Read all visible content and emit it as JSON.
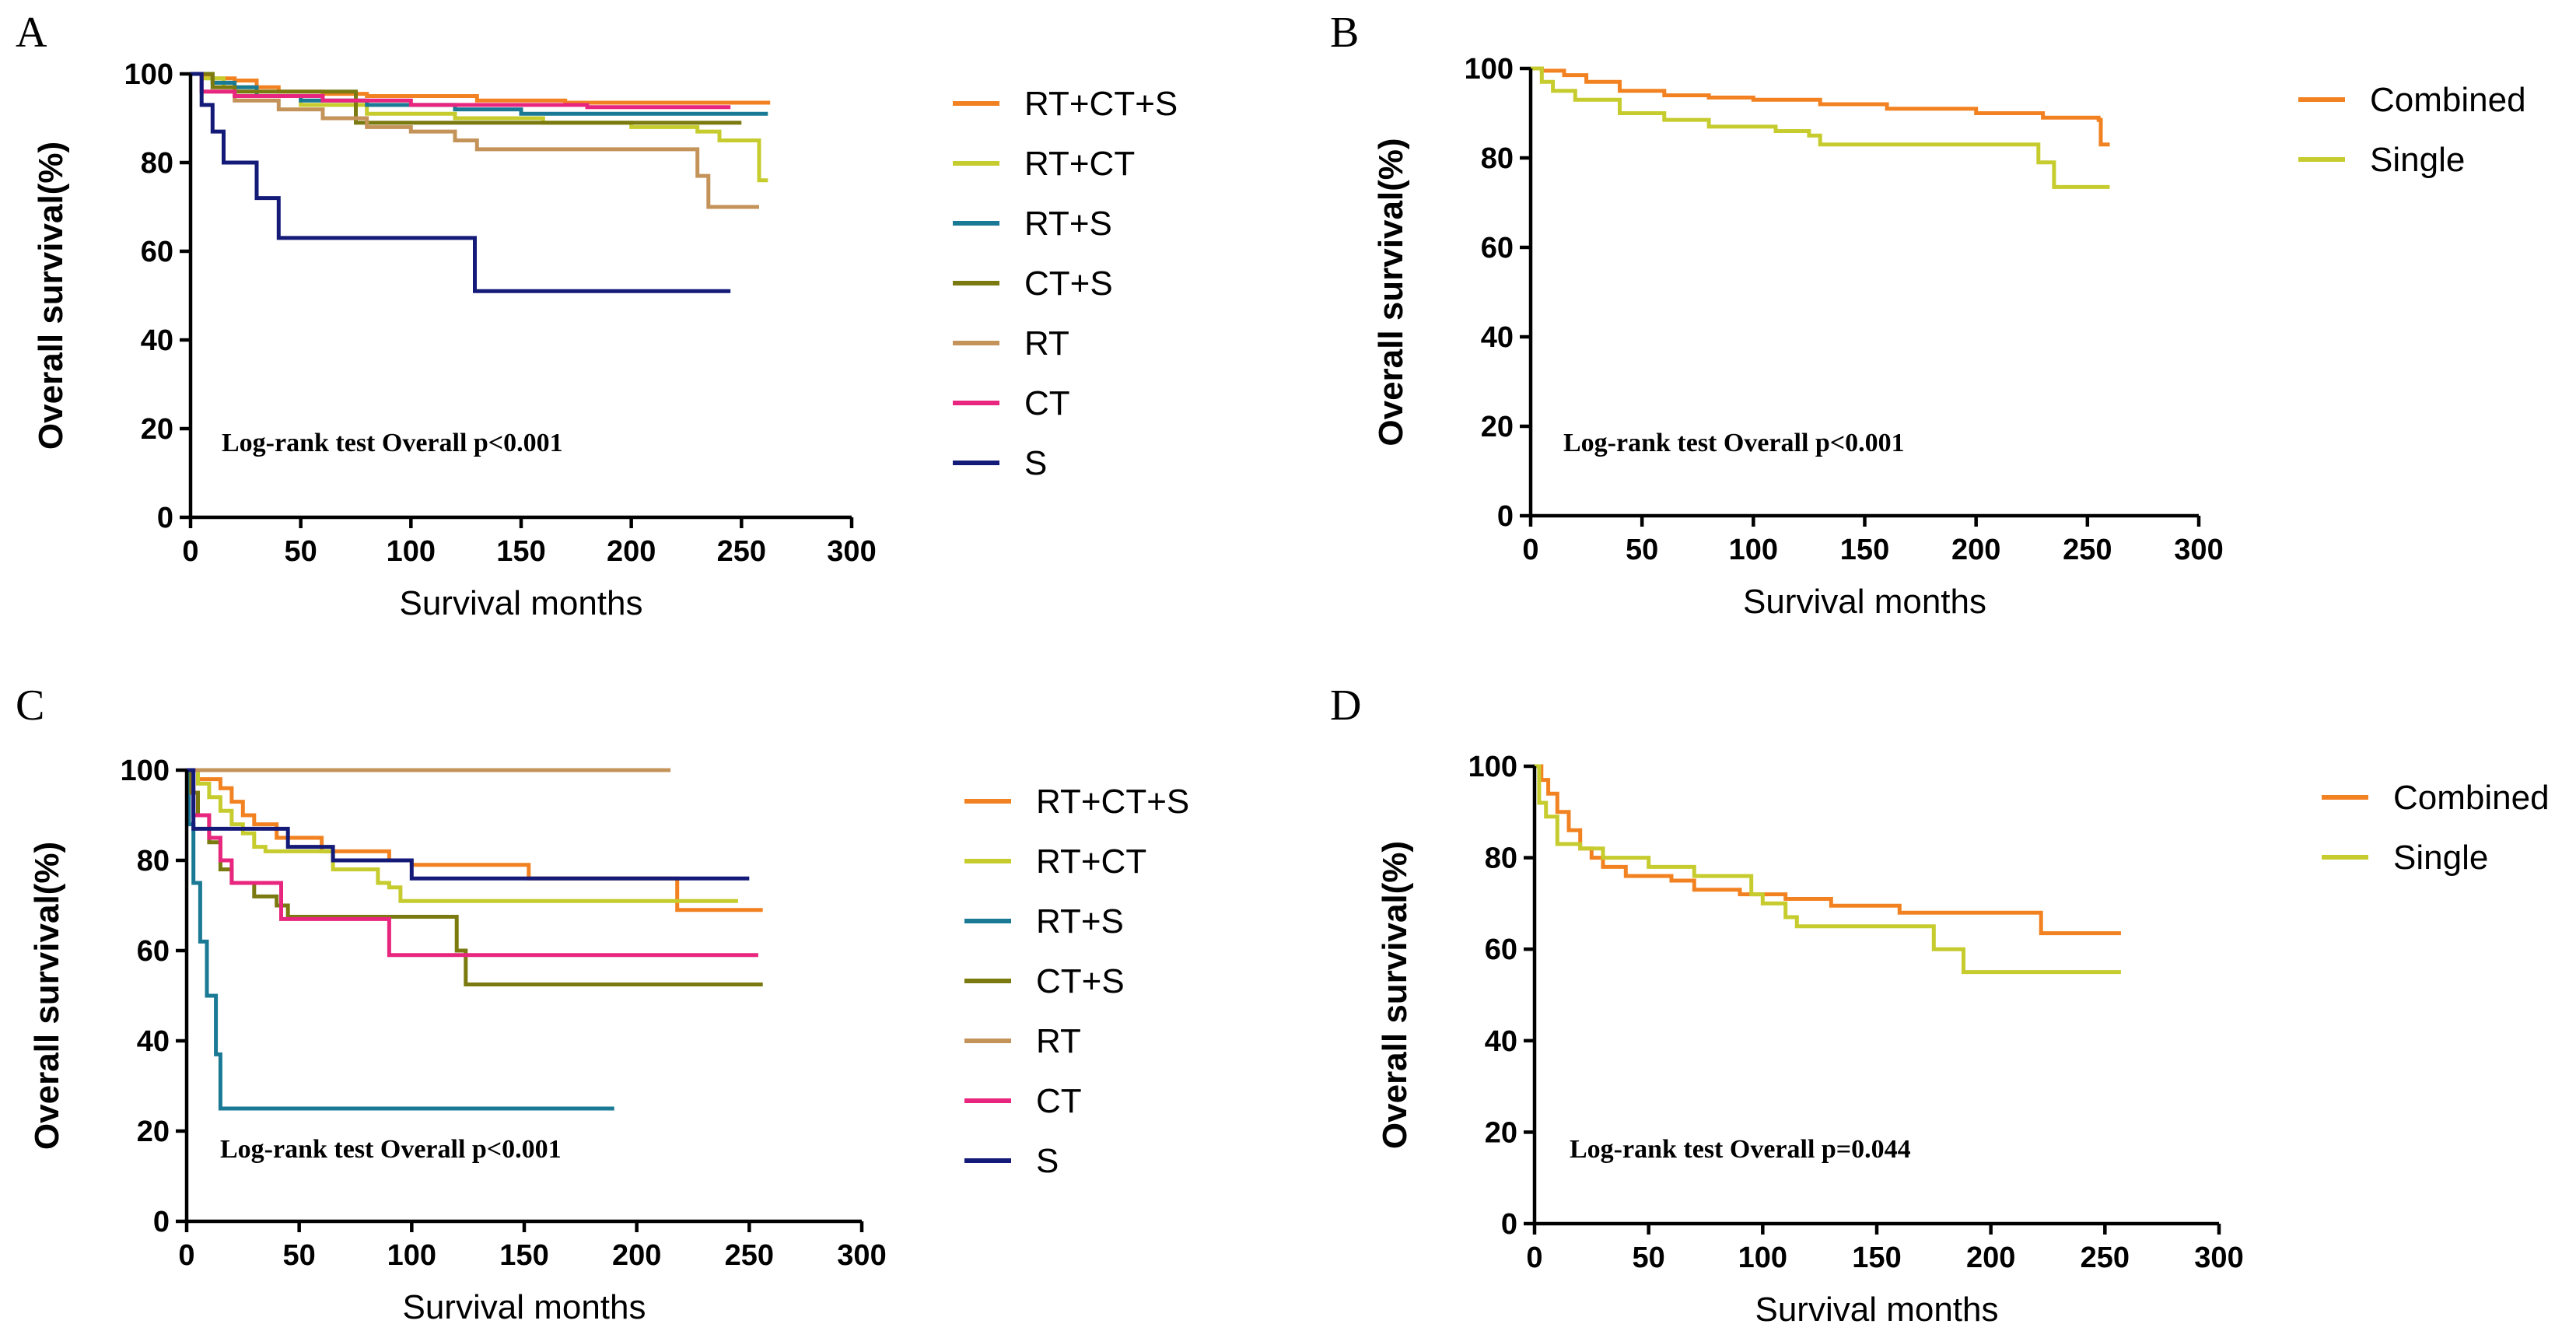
{
  "chart_data": [
    {
      "id": "A",
      "panel_label": "A",
      "type": "line",
      "xlabel": "Survival months",
      "ylabel": "Overall survival(%)",
      "xlim": [
        0,
        300
      ],
      "ylim": [
        0,
        100
      ],
      "xticks": [
        "0",
        "50",
        "100",
        "150",
        "200",
        "250",
        "300"
      ],
      "yticks": [
        "0",
        "20",
        "40",
        "60",
        "80",
        "100"
      ],
      "annotation": "Log-rank test Overall p<0.001",
      "legend_position": "right",
      "series": [
        {
          "name": "RT+CT+S",
          "color": "#F28221",
          "points": [
            [
              0,
              100
            ],
            [
              5,
              99.5
            ],
            [
              10,
              99
            ],
            [
              20,
              98.5
            ],
            [
              30,
              97
            ],
            [
              40,
              96
            ],
            [
              60,
              95.5
            ],
            [
              80,
              95
            ],
            [
              130,
              94
            ],
            [
              170,
              93.5
            ],
            [
              263,
              93.5
            ]
          ]
        },
        {
          "name": "RT+CT",
          "color": "#C6CC2E",
          "points": [
            [
              0,
              100
            ],
            [
              5,
              99
            ],
            [
              15,
              97
            ],
            [
              30,
              95
            ],
            [
              50,
              93
            ],
            [
              80,
              91
            ],
            [
              120,
              90
            ],
            [
              160,
              89
            ],
            [
              200,
              88
            ],
            [
              230,
              87
            ],
            [
              240,
              85
            ],
            [
              255,
              85
            ],
            [
              258,
              76
            ],
            [
              262,
              76
            ]
          ]
        },
        {
          "name": "RT+S",
          "color": "#1A7A95",
          "points": [
            [
              0,
              100
            ],
            [
              10,
              98
            ],
            [
              20,
              97
            ],
            [
              30,
              95
            ],
            [
              50,
              94
            ],
            [
              80,
              93
            ],
            [
              120,
              92
            ],
            [
              150,
              91
            ],
            [
              262,
              91
            ]
          ]
        },
        {
          "name": "CT+S",
          "color": "#7A7A10",
          "points": [
            [
              0,
              100
            ],
            [
              10,
              97
            ],
            [
              20,
              96
            ],
            [
              70,
              96
            ],
            [
              75,
              89
            ],
            [
              250,
              89
            ]
          ]
        },
        {
          "name": "RT",
          "color": "#C4935A",
          "points": [
            [
              0,
              100
            ],
            [
              5,
              96
            ],
            [
              20,
              94
            ],
            [
              40,
              92
            ],
            [
              60,
              90
            ],
            [
              80,
              88
            ],
            [
              100,
              87
            ],
            [
              120,
              85
            ],
            [
              130,
              83
            ],
            [
              225,
              83
            ],
            [
              230,
              77
            ],
            [
              235,
              70
            ],
            [
              258,
              70
            ]
          ]
        },
        {
          "name": "CT",
          "color": "#E8267F",
          "points": [
            [
              0,
              100
            ],
            [
              5,
              96
            ],
            [
              20,
              95
            ],
            [
              60,
              94
            ],
            [
              100,
              93
            ],
            [
              180,
              92.5
            ],
            [
              245,
              92.5
            ]
          ]
        },
        {
          "name": "S",
          "color": "#141A78",
          "points": [
            [
              0,
              100
            ],
            [
              5,
              93
            ],
            [
              10,
              87
            ],
            [
              15,
              80
            ],
            [
              28,
              80
            ],
            [
              30,
              72
            ],
            [
              38,
              72
            ],
            [
              40,
              63
            ],
            [
              128,
              63
            ],
            [
              129,
              51
            ],
            [
              245,
              51
            ]
          ]
        }
      ]
    },
    {
      "id": "B",
      "panel_label": "B",
      "type": "line",
      "xlabel": "Survival months",
      "ylabel": "Overall survival(%)",
      "xlim": [
        0,
        300
      ],
      "ylim": [
        0,
        100
      ],
      "xticks": [
        "0",
        "50",
        "100",
        "150",
        "200",
        "250",
        "300"
      ],
      "yticks": [
        "0",
        "20",
        "40",
        "60",
        "80",
        "100"
      ],
      "annotation": "Log-rank test Overall p<0.001",
      "legend_position": "right",
      "series": [
        {
          "name": "Combined",
          "color": "#F28221",
          "points": [
            [
              0,
              100
            ],
            [
              5,
              99.5
            ],
            [
              15,
              98.5
            ],
            [
              25,
              97
            ],
            [
              40,
              95
            ],
            [
              60,
              94
            ],
            [
              80,
              93.5
            ],
            [
              100,
              93
            ],
            [
              130,
              92
            ],
            [
              160,
              91
            ],
            [
              200,
              90
            ],
            [
              230,
              89
            ],
            [
              255,
              88.5
            ],
            [
              256,
              83
            ],
            [
              260,
              83
            ]
          ]
        },
        {
          "name": "Single",
          "color": "#C6CC2E",
          "points": [
            [
              0,
              100
            ],
            [
              5,
              97
            ],
            [
              10,
              95
            ],
            [
              20,
              93
            ],
            [
              40,
              90
            ],
            [
              60,
              88.5
            ],
            [
              80,
              87
            ],
            [
              110,
              86
            ],
            [
              125,
              85
            ],
            [
              130,
              83
            ],
            [
              225,
              83
            ],
            [
              228,
              79
            ],
            [
              232,
              79
            ],
            [
              235,
              73.5
            ],
            [
              260,
              73.5
            ]
          ]
        }
      ]
    },
    {
      "id": "C",
      "panel_label": "C",
      "type": "line",
      "xlabel": "Survival months",
      "ylabel": "Overall survival(%)",
      "xlim": [
        0,
        300
      ],
      "ylim": [
        0,
        100
      ],
      "xticks": [
        "0",
        "50",
        "100",
        "150",
        "200",
        "250",
        "300"
      ],
      "yticks": [
        "0",
        "20",
        "40",
        "60",
        "80",
        "100"
      ],
      "annotation": "Log-rank test Overall p<0.001",
      "legend_position": "right",
      "series": [
        {
          "name": "RT+CT+S",
          "color": "#F28221",
          "points": [
            [
              0,
              100
            ],
            [
              5,
              98
            ],
            [
              15,
              96
            ],
            [
              20,
              93
            ],
            [
              25,
              90
            ],
            [
              30,
              88
            ],
            [
              40,
              85
            ],
            [
              60,
              82
            ],
            [
              90,
              80
            ],
            [
              100,
              79
            ],
            [
              150,
              79
            ],
            [
              152,
              76
            ],
            [
              215,
              76
            ],
            [
              218,
              69
            ],
            [
              256,
              69
            ]
          ]
        },
        {
          "name": "RT+CT",
          "color": "#C6CC2E",
          "points": [
            [
              0,
              100
            ],
            [
              5,
              97
            ],
            [
              10,
              94
            ],
            [
              15,
              91
            ],
            [
              20,
              88
            ],
            [
              25,
              86
            ],
            [
              30,
              83
            ],
            [
              35,
              82
            ],
            [
              60,
              82
            ],
            [
              65,
              78
            ],
            [
              85,
              75
            ],
            [
              90,
              74
            ],
            [
              95,
              71
            ],
            [
              245,
              71
            ]
          ]
        },
        {
          "name": "RT+S",
          "color": "#1A7A95",
          "points": [
            [
              0,
              100
            ],
            [
              1,
              88
            ],
            [
              2,
              88
            ],
            [
              3,
              75
            ],
            [
              5,
              75
            ],
            [
              6,
              62
            ],
            [
              8,
              62
            ],
            [
              9,
              50
            ],
            [
              12,
              50
            ],
            [
              13,
              37
            ],
            [
              14,
              37
            ],
            [
              15,
              25
            ],
            [
              190,
              25
            ]
          ]
        },
        {
          "name": "CT+S",
          "color": "#7A7A10",
          "points": [
            [
              0,
              100
            ],
            [
              2,
              95
            ],
            [
              5,
              90
            ],
            [
              10,
              84
            ],
            [
              15,
              78
            ],
            [
              20,
              75
            ],
            [
              30,
              72
            ],
            [
              40,
              70
            ],
            [
              45,
              67.5
            ],
            [
              118,
              67.5
            ],
            [
              120,
              60
            ],
            [
              122,
              60
            ],
            [
              124,
              52.5
            ],
            [
              256,
              52.5
            ]
          ]
        },
        {
          "name": "RT",
          "color": "#C4935A",
          "points": [
            [
              0,
              100
            ],
            [
              215,
              100
            ]
          ]
        },
        {
          "name": "CT",
          "color": "#E8267F",
          "points": [
            [
              0,
              100
            ],
            [
              3,
              90
            ],
            [
              10,
              85
            ],
            [
              15,
              80
            ],
            [
              20,
              75
            ],
            [
              40,
              75
            ],
            [
              42,
              67
            ],
            [
              88,
              67
            ],
            [
              90,
              59
            ],
            [
              254,
              59
            ]
          ]
        },
        {
          "name": "S",
          "color": "#141A78",
          "points": [
            [
              0,
              100
            ],
            [
              3,
              87
            ],
            [
              40,
              87
            ],
            [
              45,
              83
            ],
            [
              60,
              83
            ],
            [
              65,
              80
            ],
            [
              95,
              80
            ],
            [
              100,
              76
            ],
            [
              250,
              76
            ]
          ]
        }
      ]
    },
    {
      "id": "D",
      "panel_label": "D",
      "type": "line",
      "xlabel": "Survival months",
      "ylabel": "Overall survival(%)",
      "xlim": [
        0,
        300
      ],
      "ylim": [
        0,
        100
      ],
      "xticks": [
        "0",
        "50",
        "100",
        "150",
        "200",
        "250",
        "300"
      ],
      "yticks": [
        "0",
        "20",
        "40",
        "60",
        "80",
        "100"
      ],
      "annotation": "Log-rank test Overall p=0.044",
      "legend_position": "right",
      "series": [
        {
          "name": "Combined",
          "color": "#F28221",
          "points": [
            [
              0,
              100
            ],
            [
              3,
              97
            ],
            [
              6,
              94
            ],
            [
              10,
              90
            ],
            [
              15,
              86
            ],
            [
              20,
              82
            ],
            [
              25,
              80
            ],
            [
              30,
              78
            ],
            [
              40,
              76
            ],
            [
              60,
              75
            ],
            [
              70,
              73
            ],
            [
              90,
              72
            ],
            [
              110,
              71
            ],
            [
              130,
              69.5
            ],
            [
              160,
              68
            ],
            [
              220,
              68
            ],
            [
              222,
              63.5
            ],
            [
              257,
              63.5
            ]
          ]
        },
        {
          "name": "Single",
          "color": "#C6CC2E",
          "points": [
            [
              0,
              100
            ],
            [
              2,
              92
            ],
            [
              5,
              89
            ],
            [
              10,
              83
            ],
            [
              20,
              82
            ],
            [
              30,
              80
            ],
            [
              50,
              78
            ],
            [
              70,
              76
            ],
            [
              90,
              76
            ],
            [
              95,
              72
            ],
            [
              100,
              70
            ],
            [
              110,
              67
            ],
            [
              115,
              65
            ],
            [
              170,
              65
            ],
            [
              175,
              60
            ],
            [
              185,
              60
            ],
            [
              188,
              55
            ],
            [
              257,
              55
            ]
          ]
        }
      ]
    }
  ]
}
